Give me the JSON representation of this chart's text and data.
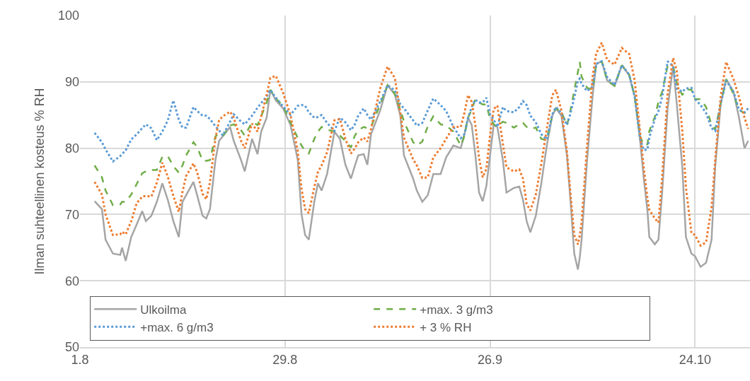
{
  "chart_data": {
    "type": "line",
    "ylabel": "Ilman suhteellinen kosteus % RH",
    "x": [
      "--08-03T00:00",
      "--08-04T00:00",
      "--08-04T12:00",
      "--08-05T12:00",
      "--08-06T12:00",
      "--08-06T18:00",
      "--08-07T06:00",
      "--08-08T00:00",
      "--08-08T18:00",
      "--08-09T12:00",
      "--08-10T00:00",
      "--08-10T18:00",
      "--08-11T12:00",
      "--08-12T06:00",
      "--08-13T00:00",
      "--08-13T18:00",
      "--08-14T12:00",
      "--08-15T00:00",
      "--08-15T12:00",
      "--08-16T12:00",
      "--08-17T00:00",
      "--08-17T18:00",
      "--08-18T06:00",
      "--08-18T18:00",
      "--08-19T12:00",
      "--08-20T00:00",
      "--08-20T12:00",
      "--08-21T12:00",
      "--08-22T00:00",
      "--08-23T00:00",
      "--08-23T12:00",
      "--08-24T12:00",
      "--08-25T06:00",
      "--08-25T18:00",
      "--08-26T12:00",
      "--08-27T00:00",
      "--08-27T18:00",
      "--08-28T18:00",
      "--08-29T18:00",
      "--08-30T18:00",
      "--08-31T06:00",
      "--08-31T18:00",
      "--09-01T06:00",
      "--09-02T00:00",
      "--09-02T12:00",
      "--09-03T00:00",
      "--09-03T18:00",
      "--09-04T18:00",
      "--09-05T12:00",
      "--09-06T06:00",
      "--09-07T00:00",
      "--09-07T12:00",
      "--09-08T00:00",
      "--09-08T18:00",
      "--09-09T06:00",
      "--09-09T18:00",
      "--09-11T00:00",
      "--09-12T00:00",
      "--09-13T00:00",
      "--09-13T18:00",
      "--09-14T06:00",
      "--09-15T12:00",
      "--09-16T00:00",
      "--09-16T18:00",
      "--09-17T12:00",
      "--09-18T06:00",
      "--09-19T06:00",
      "--09-20T00:00",
      "--09-21T00:00",
      "--09-22T00:00",
      "--09-22T12:00",
      "--09-23T00:00",
      "--09-23T12:00",
      "--09-24T00:00",
      "--09-24T12:00",
      "--09-25T00:00",
      "--09-25T12:00",
      "--09-26T00:00",
      "--09-26T12:00",
      "--09-27T00:00",
      "--09-27T18:00",
      "--09-28T06:00",
      "--09-29T06:00",
      "--09-30T00:00",
      "--09-30T12:00",
      "--10-01T00:00",
      "--10-01T12:00",
      "--10-02T06:00",
      "--10-03T00:00",
      "--10-03T18:00",
      "--10-04T12:00",
      "--10-05T00:00",
      "--10-05T18:00",
      "--10-06T12:00",
      "--10-07T00:00",
      "--10-07T12:00",
      "--10-08T00:00",
      "--10-08T06:00",
      "--10-08T12:00",
      "--10-09T06:00",
      "--10-10T00:00",
      "--10-10T12:00",
      "--10-11T06:00",
      "--10-12T00:00",
      "--10-13T00:00",
      "--10-14T00:00",
      "--10-15T00:00",
      "--10-15T18:00",
      "--10-16T12:00",
      "--10-17T00:00",
      "--10-17T12:00",
      "--10-17T18:00",
      "--10-18T12:00",
      "--10-19T00:00",
      "--10-19T12:00",
      "--10-20T06:00",
      "--10-21T00:00",
      "--10-21T12:00",
      "--10-22T06:00",
      "--10-22T18:00",
      "--10-23T12:00",
      "--10-24T00:00",
      "--10-24T18:00",
      "--10-25T12:00",
      "--10-26T06:00",
      "--10-26T18:00",
      "--10-27T12:00",
      "--10-28T06:00",
      "--10-29T06:00",
      "--10-30T00:00",
      "--10-30T18:00",
      "--10-31T06:00"
    ],
    "series": [
      {
        "name": "Ulkoilma",
        "color": "#a5a5a5",
        "line_style": "solid",
        "values": [
          72.0,
          70.8,
          66.2,
          64.1,
          63.9,
          65,
          63,
          66.6,
          68.5,
          70.5,
          69,
          69.8,
          71.9,
          74.7,
          72.2,
          69,
          66.6,
          71.9,
          72.9,
          74.9,
          72.9,
          69.8,
          69.4,
          70.8,
          78.2,
          81.1,
          81.8,
          83.2,
          81.1,
          78.2,
          76.5,
          81.4,
          79.1,
          82.5,
          84.6,
          88.8,
          87.2,
          86,
          83.5,
          78.2,
          70.1,
          66.9,
          66.2,
          71.9,
          74.7,
          73.6,
          76.1,
          82.5,
          81.4,
          77.5,
          75.4,
          77.2,
          78.9,
          79.1,
          77.5,
          82.1,
          85.7,
          89.5,
          88.1,
          84.9,
          78.9,
          75.4,
          73.6,
          71.9,
          72.9,
          76.1,
          76.1,
          78.6,
          80.4,
          80,
          82.1,
          84.6,
          83.5,
          78.9,
          73.3,
          72,
          74.3,
          78.9,
          83.5,
          83.2,
          78.2,
          73.3,
          74,
          74.2,
          72.2,
          69,
          67.3,
          69.8,
          74.7,
          80.4,
          84.9,
          86,
          84.9,
          78.9,
          71.9,
          64.1,
          61.7,
          63.5,
          66.2,
          78.2,
          87.8,
          92.7,
          93.1,
          90.2,
          89.4,
          92.5,
          91,
          87.8,
          81.1,
          75.4,
          70.5,
          66.6,
          65.5,
          66.2,
          73.3,
          86,
          92.4,
          86.7,
          77.2,
          66.6,
          64.1,
          63.7,
          62.1,
          62.7,
          66.2,
          77.2,
          86.7,
          90.4,
          88.5,
          84.6,
          80,
          81.1
        ]
      },
      {
        "name": "+max. 3 g/m3",
        "color": "#70ad47",
        "line_style": "dashed",
        "values": [
          77.4,
          75.6,
          73.6,
          71.4,
          71.5,
          71.9,
          71.9,
          73,
          74.6,
          76.2,
          76.5,
          76.7,
          76.7,
          78.7,
          78.8,
          77.3,
          76.3,
          77.4,
          78.9,
          80.9,
          80.2,
          78.1,
          78.1,
          78.2,
          81.8,
          82.1,
          81.8,
          83.4,
          83.6,
          82.7,
          81.9,
          83.9,
          83.5,
          84.8,
          86.9,
          88.8,
          87.5,
          86.3,
          83.9,
          81.5,
          80.4,
          79.6,
          79.2,
          81.4,
          82.5,
          83.2,
          82.8,
          82.5,
          81.9,
          81.1,
          80.1,
          81.8,
          82.7,
          83.2,
          83,
          83.2,
          86.6,
          89.5,
          88.2,
          85.8,
          84,
          80.9,
          80.4,
          81,
          83.3,
          84.8,
          83.6,
          83.4,
          82.5,
          80.4,
          81.8,
          84.6,
          85.8,
          87.4,
          86.9,
          86.6,
          86.6,
          84.4,
          83.6,
          83.2,
          84,
          83.8,
          83.1,
          83.6,
          83.8,
          83.2,
          82.9,
          83.1,
          81.4,
          81.2,
          84.9,
          86,
          85.5,
          83.4,
          85.8,
          88.7,
          91.5,
          93,
          90.8,
          89.1,
          88.8,
          92.7,
          93.1,
          90.2,
          89.4,
          92.5,
          91.1,
          87.8,
          81.8,
          80.4,
          80.6,
          82.6,
          84.7,
          87,
          88.5,
          92.4,
          92.4,
          89.9,
          88,
          88.9,
          88.8,
          87.4,
          87.4,
          86.2,
          83.5,
          82.8,
          86.7,
          90.4,
          88.2,
          85.7,
          85.3,
          85.7
        ]
      },
      {
        "name": "+max. 6 g/m3",
        "color": "#5b9bd5",
        "line_style": "dotted",
        "values": [
          82.3,
          80.9,
          79.8,
          78,
          78.8,
          79.1,
          79.7,
          81.3,
          82.1,
          83,
          83.6,
          83,
          81.2,
          82.5,
          84.2,
          87.2,
          84.3,
          83.1,
          83.1,
          86.2,
          85.6,
          84.9,
          84.9,
          84.4,
          83.3,
          82.7,
          81.9,
          84,
          85.1,
          84,
          83.6,
          84.9,
          86.1,
          86.8,
          87.8,
          88.8,
          87.6,
          86.3,
          85,
          86.4,
          86.5,
          86.4,
          85.4,
          84.6,
          84.7,
          85,
          83.8,
          82.6,
          84.6,
          83.9,
          82.7,
          83.5,
          84.9,
          86,
          85,
          84.3,
          87,
          89.5,
          88.7,
          86.6,
          86,
          84.2,
          83.4,
          83.8,
          85.7,
          87.5,
          86.5,
          85.6,
          83.2,
          81.5,
          82.1,
          84.6,
          86.2,
          87.3,
          86.9,
          86.9,
          87.6,
          85.1,
          84.3,
          83.2,
          86.2,
          85.6,
          85.4,
          86.2,
          87.1,
          86.5,
          84.9,
          83.9,
          82.1,
          81.3,
          85.1,
          86.2,
          85.3,
          83.5,
          85.3,
          87.6,
          90.2,
          90.5,
          89.7,
          88.6,
          89.3,
          92.7,
          93.1,
          90.7,
          89.5,
          92.5,
          91.1,
          87.8,
          81.4,
          79.7,
          79.8,
          81.6,
          84.4,
          85.6,
          87.7,
          93.1,
          92.4,
          89,
          88.5,
          89,
          89.1,
          87.4,
          86.5,
          85.3,
          83,
          82.6,
          86.7,
          90.2,
          88.5,
          85.8,
          85.4,
          86
        ]
      },
      {
        "name": "+ 3 % RH",
        "color": "#ed7d31",
        "line_style": "dotted",
        "values": [
          74.9,
          73,
          70,
          66.9,
          67,
          67.4,
          67,
          69,
          71.7,
          72.7,
          72.8,
          72.7,
          74.8,
          77.8,
          75.7,
          72.8,
          70.4,
          73.4,
          75.8,
          77.7,
          76.4,
          73.1,
          72.3,
          74.8,
          81.5,
          84.2,
          84.8,
          85.5,
          84.6,
          81.1,
          80,
          83.7,
          82.5,
          84.8,
          88.1,
          90.6,
          90.9,
          88.3,
          85,
          79.5,
          73.9,
          70.8,
          70.2,
          74.1,
          76.4,
          77.4,
          79.4,
          84.2,
          84.4,
          81.4,
          79.2,
          79.9,
          80.9,
          81.6,
          81,
          82.9,
          89,
          92.3,
          90.6,
          85.3,
          81.6,
          78.3,
          77.4,
          75.5,
          75.6,
          78.6,
          80,
          81.4,
          83.2,
          83.2,
          85.3,
          88,
          87,
          83.4,
          78.5,
          75.6,
          76.9,
          81.9,
          85.9,
          86.4,
          80.7,
          77.1,
          76.5,
          76.8,
          75.4,
          71.6,
          70.6,
          73,
          77.6,
          82.9,
          88,
          88.8,
          85.7,
          79.5,
          73,
          66.9,
          65.5,
          66.8,
          68.8,
          80.4,
          90.7,
          94.3,
          95.9,
          93.3,
          92.6,
          95.1,
          94.2,
          90.2,
          82.4,
          77,
          72.4,
          70.7,
          69.4,
          68.8,
          75.5,
          88.2,
          93.6,
          91.7,
          82.6,
          74.1,
          67.2,
          66.9,
          65.3,
          65.8,
          71.1,
          78.3,
          87.8,
          93,
          90.4,
          87.7,
          84.6,
          82.9
        ]
      }
    ],
    "xlim": [
      "--08-01",
      "--10-31T12:00"
    ],
    "xticks": [
      {
        "value": "--08-01",
        "label": "1.8"
      },
      {
        "value": "--08-29",
        "label": "29.8"
      },
      {
        "value": "--09-26",
        "label": "26.9"
      },
      {
        "value": "--10-24",
        "label": "24.10"
      }
    ],
    "ylim": [
      50,
      100
    ],
    "yticks": [
      50,
      60,
      70,
      80,
      90,
      100
    ],
    "grid": true,
    "legend": "bottom left",
    "marker": "none"
  }
}
